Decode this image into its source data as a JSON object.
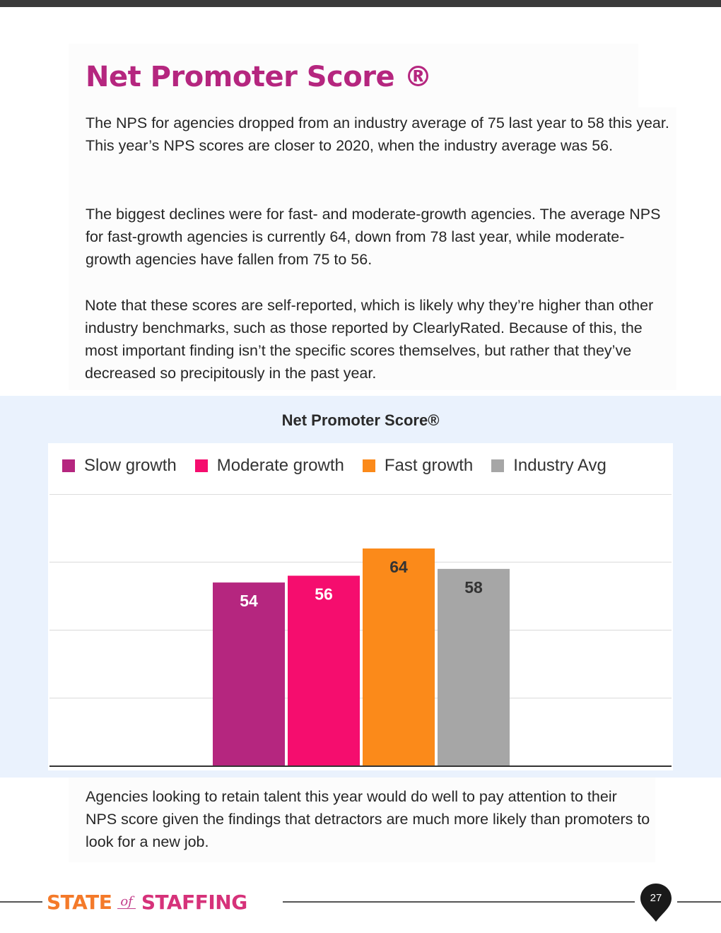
{
  "page": {
    "title": "Net Promoter Score ®",
    "paragraphs": [
      "The NPS for agencies dropped from an industry average of 75 last year to 58 this year. This year’s NPS scores are closer to 2020, when the industry average was 56.",
      "The biggest declines were for fast- and moderate-growth agencies. The average NPS for fast-growth agencies is currently 64, down from 78 last year, while moderate-growth agencies have fallen from 75 to 56.",
      "Note that these scores are self-reported, which is likely why they’re higher than other industry benchmarks, such as those reported by ClearlyRated. Because of this, the most important finding isn’t the specific scores themselves, but rather that they’ve decreased so precipitously in the past year."
    ],
    "closing_paragraph": "Agencies looking to retain talent this year would do well to pay attention to their NPS score given the findings that detractors are much more likely than promoters to look for a new job."
  },
  "chart_data": {
    "type": "bar",
    "title": "Net Promoter Score®",
    "categories": [
      ""
    ],
    "series": [
      {
        "name": "Slow growth",
        "values": [
          54
        ],
        "color": "#b5267f"
      },
      {
        "name": "Moderate growth",
        "values": [
          56
        ],
        "color": "#f50d6e"
      },
      {
        "name": "Fast growth",
        "values": [
          64
        ],
        "color": "#fb8a1a"
      },
      {
        "name": "Industry Avg",
        "values": [
          58
        ],
        "color": "#a6a6a6"
      }
    ],
    "data_label_colors": [
      "#ffffff",
      "#ffffff",
      "#333333",
      "#333333"
    ],
    "ylim": [
      0,
      80
    ],
    "gridlines": [
      0,
      20,
      40,
      60,
      80
    ],
    "legend_position": "top",
    "xlabel": "",
    "ylabel": ""
  },
  "footer": {
    "logo_state": "STATE",
    "logo_of": "of",
    "logo_staffing": "STAFFING",
    "page_number": "27"
  }
}
